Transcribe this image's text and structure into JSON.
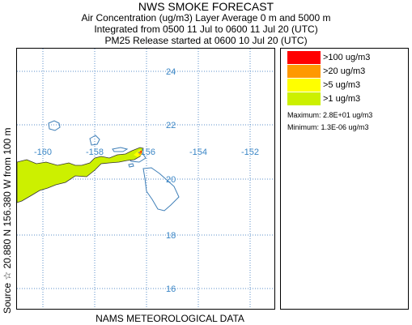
{
  "header": {
    "title": "NWS SMOKE FORECAST",
    "line1": "Air Concentration (ug/m3) Layer Average    0 m and  5000 m",
    "line2": "Integrated from 0500 11 Jul to 0600 11 Jul 20 (UTC)",
    "line3": "PM25 Release started at 0600 10 Jul 20 (UTC)"
  },
  "side_label": "Source ☆  20.880 N 156.380  W    from   100 m",
  "footer": "NAMS METEOROLOGICAL DATA",
  "map": {
    "lat_labels": [
      "24",
      "22",
      "20",
      "18",
      "16"
    ],
    "lon_labels": [
      "-160",
      "-158",
      "-156",
      "-154",
      "-152"
    ],
    "grid_color": "#5b8fc9",
    "label_color": "#3a86c6",
    "coast_color": "#3f7fb8",
    "plume_color": "#ccf000",
    "core_colors": [
      "#ff0000",
      "#ff9900",
      "#ffff00"
    ]
  },
  "legend": {
    "items": [
      {
        "label": ">100 ug/m3",
        "color": "#ff0000"
      },
      {
        "label": ">20 ug/m3",
        "color": "#ff9900"
      },
      {
        "label": ">5 ug/m3",
        "color": "#ffff00"
      },
      {
        "label": ">1 ug/m3",
        "color": "#ccf000"
      }
    ],
    "maximum": "Maximum: 2.8E+01 ug/m3",
    "minimum": "Minimum: 1.3E-06 ug/m3"
  }
}
